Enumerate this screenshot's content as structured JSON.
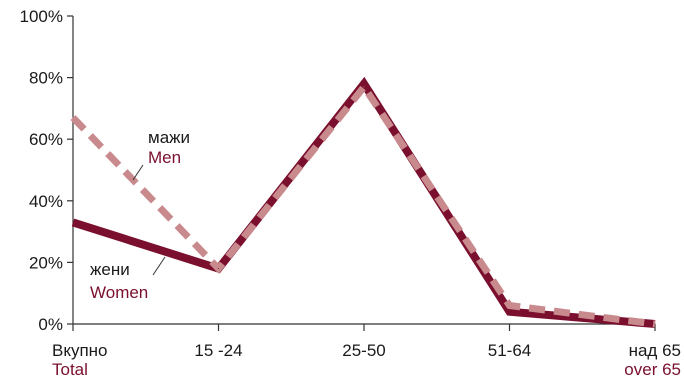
{
  "chart_data": {
    "type": "line",
    "categories": [
      "Вкупно",
      "15 -24",
      "25-50",
      "51-64",
      "над 65"
    ],
    "categories_en": [
      "Total",
      "",
      "",
      "",
      "over 65"
    ],
    "yticks": [
      "0%",
      "20%",
      "40%",
      "60%",
      "80%",
      "100%"
    ],
    "ylim": [
      0,
      100
    ],
    "series": [
      {
        "name": "мажи",
        "name_en": "Men",
        "values": [
          67,
          18,
          77,
          6,
          0
        ],
        "color": "#c98a8e",
        "style": "dashed"
      },
      {
        "name": "жени",
        "name_en": "Women",
        "values": [
          33,
          18,
          78,
          4,
          0
        ],
        "color": "#7a0f2e",
        "style": "solid"
      }
    ],
    "colors": {
      "axis": "#333333",
      "label_en": "#7a0f2e"
    }
  }
}
